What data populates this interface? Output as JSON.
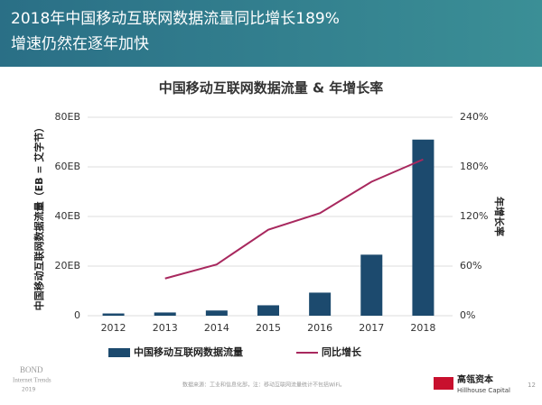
{
  "header": {
    "title": "2018年中国移动互联网数据流量同比增长189%",
    "subtitle": "增速仍然在逐年加快"
  },
  "chart_data": {
    "type": "bar",
    "title": "中国移动互联网数据流量 & 年增长率",
    "y_label": "中国移动互联网数据流量（EB = 艾字节）",
    "y2_label": "年增长率",
    "categories": [
      "2012",
      "2013",
      "2014",
      "2015",
      "2016",
      "2017",
      "2018"
    ],
    "series": [
      {
        "name": "中国移动互联网数据流量",
        "type": "bar",
        "color": "#1c4a6e",
        "values": [
          0.9,
          1.3,
          2.1,
          4.2,
          9.3,
          24.6,
          71
        ]
      },
      {
        "name": "同比增长",
        "type": "line",
        "axis": "y2",
        "color": "#a8285e",
        "values": [
          null,
          45,
          62,
          104,
          124,
          162,
          189
        ]
      }
    ],
    "ylim": [
      0,
      80
    ],
    "yticks": [
      0,
      {
        "value": 20,
        "label": "20EB"
      },
      {
        "value": 40,
        "label": "40EB"
      },
      {
        "value": 60,
        "label": "60EB"
      },
      {
        "value": 80,
        "label": "80EB"
      }
    ],
    "y2lim": [
      0,
      240
    ],
    "y2ticks": [
      {
        "value": 0,
        "label": "0%"
      },
      {
        "value": 60,
        "label": "60%"
      },
      {
        "value": 120,
        "label": "120%"
      },
      {
        "value": 180,
        "label": "180%"
      },
      {
        "value": 240,
        "label": "240%"
      }
    ],
    "grid": true
  },
  "footer": {
    "brand": "BOND",
    "brand_sub": "Internet Trends",
    "brand_year": "2019",
    "source": "数据来源：工业和信息化部，注：移动互联网流量统计不包括WiFi。",
    "logo": "高瓴资本",
    "logo_en": "Hillhouse Capital",
    "page": "12"
  }
}
